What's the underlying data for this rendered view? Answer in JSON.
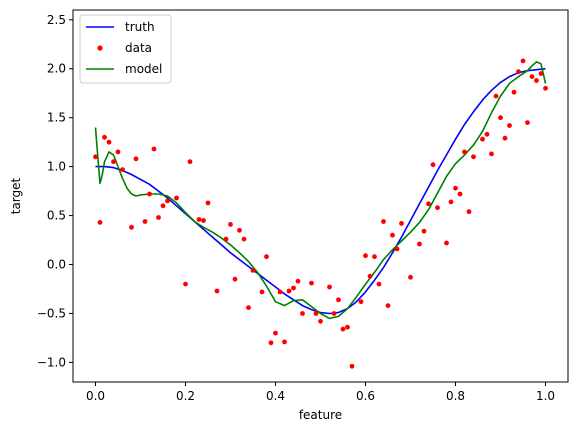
{
  "chart_data": {
    "type": "line",
    "xlabel": "feature",
    "ylabel": "target",
    "xlim": [
      -0.05,
      1.05
    ],
    "ylim": [
      -1.2,
      2.6
    ],
    "xticks": [
      {
        "value": 0.0,
        "label": "0.0"
      },
      {
        "value": 0.2,
        "label": "0.2"
      },
      {
        "value": 0.4,
        "label": "0.4"
      },
      {
        "value": 0.6,
        "label": "0.6"
      },
      {
        "value": 0.8,
        "label": "0.8"
      },
      {
        "value": 1.0,
        "label": "1.0"
      }
    ],
    "yticks": [
      {
        "value": -1.0,
        "label": "−1.0"
      },
      {
        "value": -0.5,
        "label": "−0.5"
      },
      {
        "value": 0.0,
        "label": "0.0"
      },
      {
        "value": 0.5,
        "label": "0.5"
      },
      {
        "value": 1.0,
        "label": "1.0"
      },
      {
        "value": 1.5,
        "label": "1.5"
      },
      {
        "value": 2.0,
        "label": "2.0"
      },
      {
        "value": 2.5,
        "label": "2.5"
      }
    ],
    "grid": false,
    "legend_position": "top-left",
    "series": [
      {
        "name": "truth",
        "kind": "line",
        "color": "#0000ff",
        "x": [
          0.0,
          0.02,
          0.04,
          0.06,
          0.08,
          0.1,
          0.12,
          0.14,
          0.16,
          0.18,
          0.2,
          0.22,
          0.24,
          0.26,
          0.28,
          0.3,
          0.32,
          0.34,
          0.36,
          0.38,
          0.4,
          0.42,
          0.44,
          0.46,
          0.48,
          0.5,
          0.52,
          0.54,
          0.56,
          0.58,
          0.6,
          0.62,
          0.64,
          0.66,
          0.68,
          0.7,
          0.72,
          0.74,
          0.76,
          0.78,
          0.8,
          0.82,
          0.84,
          0.86,
          0.88,
          0.9,
          0.92,
          0.94,
          0.96,
          0.98,
          1.0
        ],
        "y": [
          1.0,
          1.0,
          0.99,
          0.96,
          0.92,
          0.87,
          0.82,
          0.75,
          0.68,
          0.6,
          0.52,
          0.44,
          0.36,
          0.28,
          0.2,
          0.12,
          0.05,
          -0.02,
          -0.09,
          -0.16,
          -0.23,
          -0.3,
          -0.36,
          -0.42,
          -0.46,
          -0.49,
          -0.5,
          -0.49,
          -0.45,
          -0.38,
          -0.28,
          -0.16,
          -0.03,
          0.12,
          0.28,
          0.45,
          0.62,
          0.79,
          0.96,
          1.12,
          1.28,
          1.43,
          1.56,
          1.68,
          1.78,
          1.86,
          1.92,
          1.96,
          1.98,
          1.99,
          2.0
        ]
      },
      {
        "name": "data",
        "kind": "scatter",
        "color": "#ff0000",
        "x": [
          0.0,
          0.01,
          0.02,
          0.03,
          0.04,
          0.05,
          0.06,
          0.08,
          0.09,
          0.11,
          0.12,
          0.13,
          0.14,
          0.15,
          0.16,
          0.18,
          0.2,
          0.21,
          0.23,
          0.24,
          0.25,
          0.27,
          0.29,
          0.3,
          0.31,
          0.32,
          0.33,
          0.34,
          0.35,
          0.37,
          0.38,
          0.39,
          0.4,
          0.41,
          0.42,
          0.43,
          0.44,
          0.45,
          0.46,
          0.48,
          0.49,
          0.5,
          0.52,
          0.53,
          0.54,
          0.55,
          0.56,
          0.57,
          0.59,
          0.6,
          0.61,
          0.62,
          0.63,
          0.64,
          0.65,
          0.66,
          0.67,
          0.68,
          0.7,
          0.72,
          0.73,
          0.74,
          0.75,
          0.76,
          0.78,
          0.79,
          0.8,
          0.81,
          0.82,
          0.83,
          0.84,
          0.86,
          0.87,
          0.88,
          0.89,
          0.9,
          0.91,
          0.92,
          0.93,
          0.94,
          0.95,
          0.96,
          0.97,
          0.98,
          0.99,
          1.0
        ],
        "y": [
          1.1,
          0.43,
          1.3,
          1.25,
          1.05,
          1.15,
          0.97,
          0.38,
          1.08,
          0.44,
          0.72,
          1.18,
          0.48,
          0.6,
          0.65,
          0.68,
          -0.2,
          1.05,
          0.46,
          0.45,
          0.63,
          -0.27,
          0.26,
          0.41,
          -0.15,
          0.35,
          0.26,
          -0.44,
          -0.06,
          -0.28,
          0.08,
          -0.8,
          -0.7,
          -0.28,
          -0.79,
          -0.27,
          -0.24,
          -0.17,
          -0.5,
          -0.19,
          -0.5,
          -0.58,
          -0.23,
          -0.5,
          -0.36,
          -0.66,
          -0.64,
          -1.04,
          -0.38,
          0.09,
          -0.12,
          0.08,
          -0.2,
          0.44,
          -0.42,
          0.3,
          0.16,
          0.42,
          -0.13,
          0.21,
          0.34,
          0.62,
          1.02,
          0.58,
          0.22,
          0.64,
          0.78,
          0.72,
          1.15,
          0.54,
          1.1,
          1.28,
          1.33,
          1.13,
          1.72,
          1.5,
          1.29,
          1.42,
          1.76,
          1.97,
          2.08,
          1.45,
          1.92,
          1.88,
          1.95,
          1.8
        ]
      },
      {
        "name": "model",
        "kind": "line",
        "color": "#008000",
        "x": [
          0.0,
          0.005,
          0.01,
          0.015,
          0.02,
          0.03,
          0.04,
          0.05,
          0.06,
          0.07,
          0.08,
          0.09,
          0.1,
          0.12,
          0.14,
          0.16,
          0.18,
          0.2,
          0.22,
          0.24,
          0.26,
          0.28,
          0.3,
          0.32,
          0.34,
          0.36,
          0.38,
          0.4,
          0.42,
          0.44,
          0.46,
          0.48,
          0.5,
          0.52,
          0.54,
          0.56,
          0.58,
          0.6,
          0.62,
          0.64,
          0.66,
          0.68,
          0.7,
          0.72,
          0.74,
          0.76,
          0.78,
          0.8,
          0.82,
          0.84,
          0.86,
          0.88,
          0.9,
          0.92,
          0.94,
          0.96,
          0.97,
          0.98,
          0.99,
          1.0
        ],
        "y": [
          1.4,
          1.1,
          0.83,
          0.92,
          1.05,
          1.15,
          1.12,
          1.0,
          0.88,
          0.78,
          0.72,
          0.7,
          0.71,
          0.72,
          0.72,
          0.7,
          0.63,
          0.53,
          0.44,
          0.38,
          0.33,
          0.27,
          0.2,
          0.12,
          0.03,
          -0.08,
          -0.22,
          -0.38,
          -0.42,
          -0.37,
          -0.36,
          -0.43,
          -0.5,
          -0.55,
          -0.53,
          -0.45,
          -0.33,
          -0.2,
          -0.08,
          0.05,
          0.15,
          0.24,
          0.33,
          0.43,
          0.56,
          0.73,
          0.9,
          1.03,
          1.12,
          1.22,
          1.36,
          1.55,
          1.72,
          1.85,
          1.92,
          1.98,
          2.03,
          2.07,
          2.05,
          1.85
        ]
      }
    ]
  }
}
